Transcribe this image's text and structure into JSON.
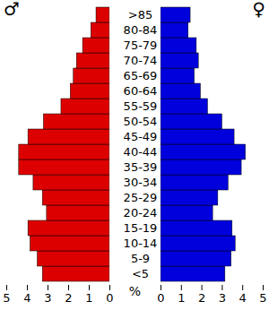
{
  "chart_data": {
    "type": "bar",
    "orientation": "horizontal",
    "categories": [
      "<5",
      "5-9",
      "10-14",
      "15-19",
      "20-24",
      "25-29",
      "30-34",
      "35-39",
      "40-44",
      "45-49",
      "50-54",
      "55-59",
      "60-64",
      "65-69",
      "70-74",
      "75-79",
      "80-84",
      ">85"
    ],
    "series": [
      {
        "name": "♂",
        "color": "#dd0000",
        "values": [
          3.25,
          3.5,
          3.85,
          3.95,
          3.05,
          3.25,
          3.7,
          4.4,
          4.4,
          3.95,
          3.2,
          2.35,
          1.9,
          1.75,
          1.6,
          1.3,
          0.9,
          0.65
        ]
      },
      {
        "name": "♀",
        "color": "#0000dd",
        "values": [
          3.15,
          3.45,
          3.65,
          3.5,
          2.55,
          2.8,
          3.3,
          3.95,
          4.15,
          3.6,
          3.0,
          2.3,
          1.95,
          1.65,
          1.85,
          1.75,
          1.35,
          1.45
        ]
      }
    ],
    "xlabel": "%",
    "xlim": [
      0,
      5
    ],
    "xticks": [
      0,
      1,
      2,
      3,
      4,
      5
    ],
    "grid": false
  }
}
